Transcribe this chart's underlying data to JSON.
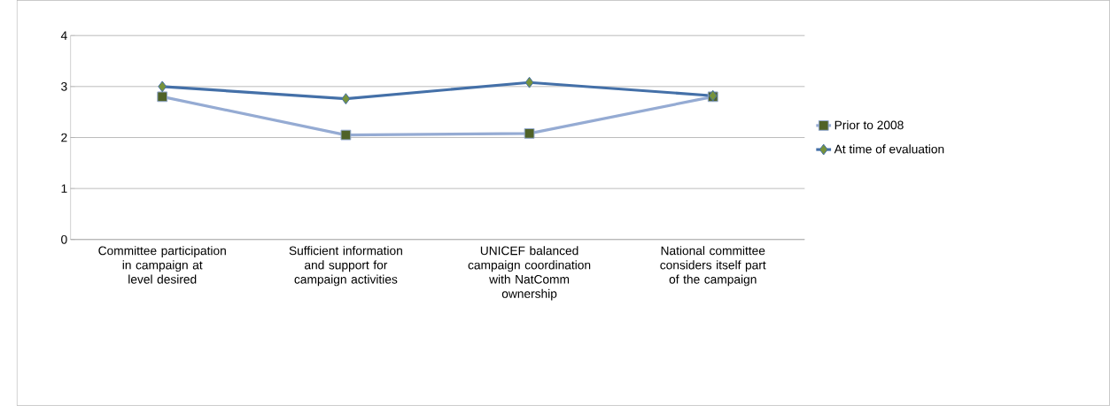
{
  "chart_data": {
    "type": "line",
    "categories": [
      "Committee participation in campaign at level desired",
      "Sufficient information and support for campaign activities",
      "UNICEF balanced campaign coordination with NatComm ownership",
      "National committee considers itself part of the campaign"
    ],
    "series": [
      {
        "name": "Prior to 2008",
        "color": "#95abd3",
        "marker": "square",
        "values": [
          2.8,
          2.05,
          2.08,
          2.8
        ]
      },
      {
        "name": "At time of evaluation",
        "color": "#4470a8",
        "marker": "diamond",
        "values": [
          3.0,
          2.76,
          3.08,
          2.82
        ]
      }
    ],
    "ylim": [
      0,
      4
    ],
    "yticks": [
      0,
      1,
      2,
      3,
      4
    ],
    "grid": "y",
    "legend": "right"
  }
}
